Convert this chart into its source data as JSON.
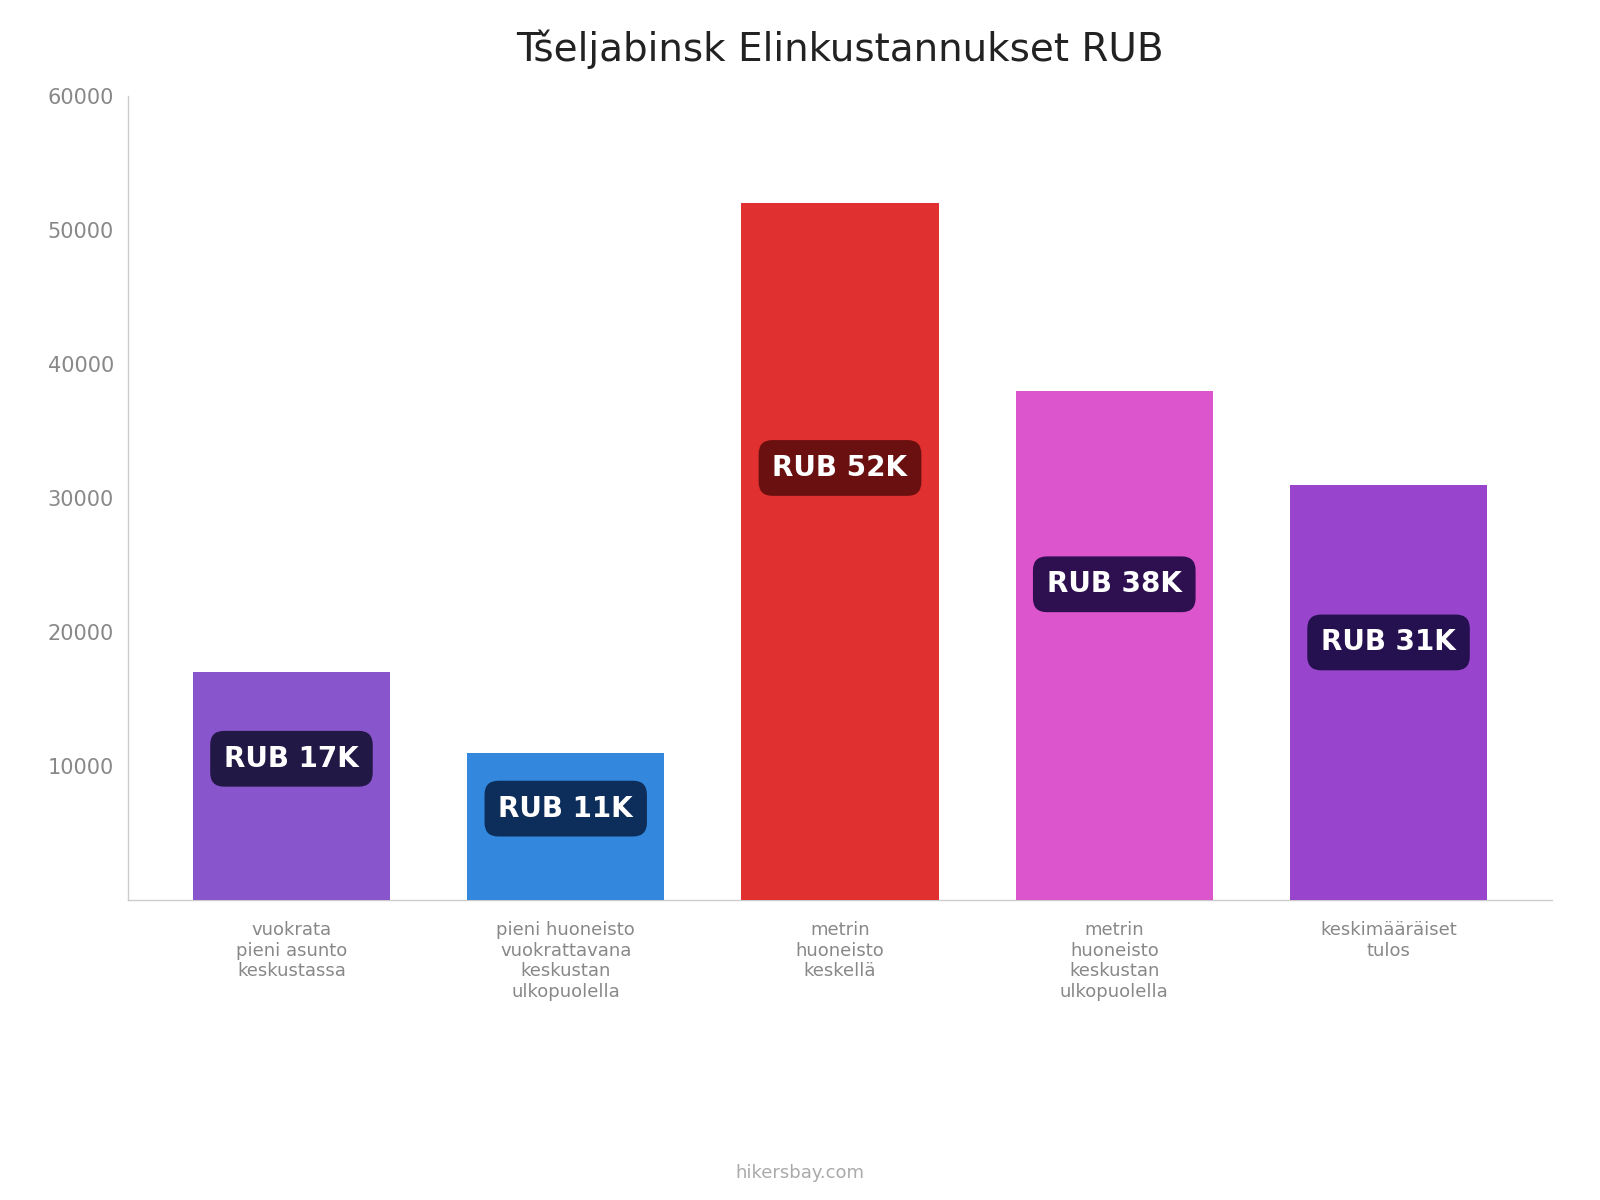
{
  "title": "Tšeljabinsk Elinkustannukset RUB",
  "categories": [
    "vuokrata\npieni asunto\nkeskustassa",
    "pieni huoneisto\nvuokrattavana\nkeskustan\nulkopuolella",
    "metrin\nhuoneisto\nkeskellä",
    "metrin\nhuoneisto\nkeskustan\nulkopuolella",
    "keskimääräiset\ntulos"
  ],
  "values": [
    17000,
    11000,
    52000,
    38000,
    31000
  ],
  "labels": [
    "RUB 17K",
    "RUB 11K",
    "RUB 52K",
    "RUB 38K",
    "RUB 31K"
  ],
  "bar_colors": [
    "#8855CC",
    "#3388DD",
    "#E03030",
    "#DD55CC",
    "#9944CC"
  ],
  "label_bg_colors": [
    "#221845",
    "#0D2E5A",
    "#6B1010",
    "#2E1050",
    "#251050"
  ],
  "ylim": [
    0,
    60000
  ],
  "yticks": [
    0,
    10000,
    20000,
    30000,
    40000,
    50000,
    60000
  ],
  "background_color": "#ffffff",
  "title_fontsize": 28,
  "watermark": "hikersbay.com",
  "label_fontsize": 20
}
